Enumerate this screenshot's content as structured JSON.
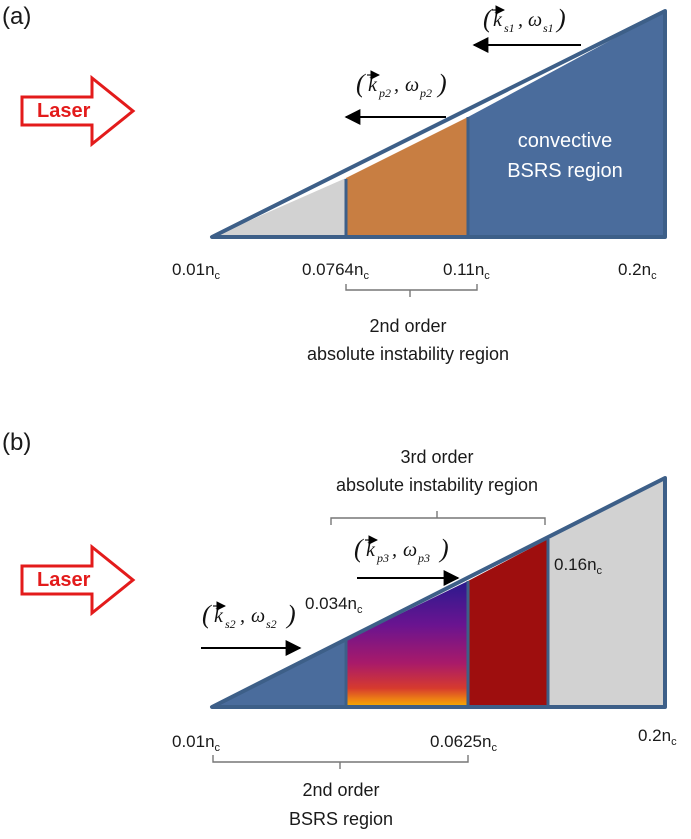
{
  "panel_a": {
    "tag": "(a)",
    "laser_label": "Laser",
    "ticks": [
      "0.01n",
      "0.0764n",
      "0.11n",
      "0.2n"
    ],
    "tick_sub": "c",
    "region_text_1": "convective",
    "region_text_2": "BSRS region",
    "brace_text_1": "2nd order",
    "brace_text_2": "absolute instability region",
    "wave_s1": {
      "k": "k",
      "ks": "s1",
      "w": "ω",
      "ws": "s1"
    },
    "wave_p2": {
      "k": "k",
      "ks": "p2",
      "w": "ω",
      "ws": "p2"
    },
    "colors": {
      "blue": "#4a6c9c",
      "gray": "#d2d2d2",
      "orange": "#c87e42",
      "edge": "#3d5f88"
    }
  },
  "panel_b": {
    "tag": "(b)",
    "laser_label": "Laser",
    "ticks": [
      "0.01n",
      "0.0625n",
      "0.2n"
    ],
    "tick_sub": "c",
    "inline_labels": [
      "0.034n",
      "0.16n"
    ],
    "brace_top_1": "3rd order",
    "brace_top_2": "absolute instability region",
    "brace_bottom_1": "2nd order",
    "brace_bottom_2": "BSRS region",
    "wave_s2": {
      "k": "k",
      "ks": "s2",
      "w": "ω",
      "ws": "s2"
    },
    "wave_p3": {
      "k": "k",
      "ks": "p3",
      "w": "ω",
      "ws": "p3"
    },
    "colors": {
      "blue": "#4a6c9c",
      "gray": "#d2d2d2",
      "darkred": "#9e0e0e",
      "edge": "#3d5f88"
    }
  }
}
